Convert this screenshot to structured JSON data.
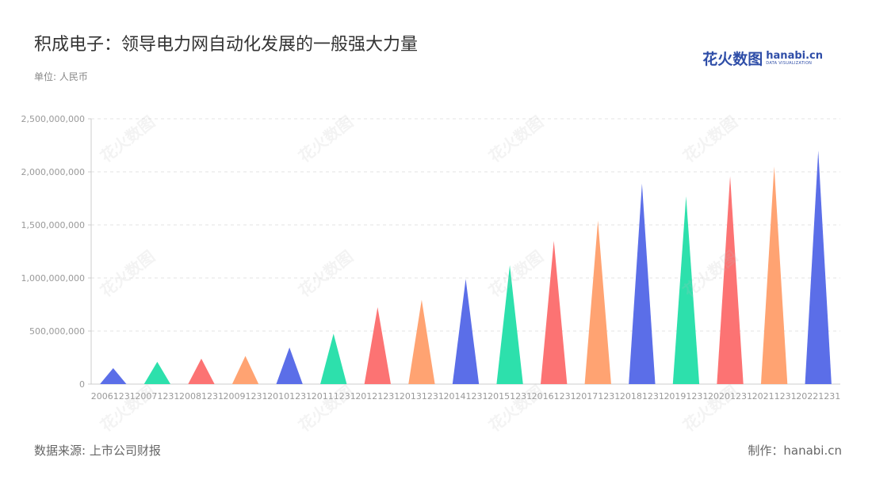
{
  "header": {
    "title": "积成电子：领导电力网自动化发展的一般强大力量",
    "unit": "单位: 人民币"
  },
  "logo": {
    "cn": "花火数图",
    "domain": "hanabi.cn",
    "sub": "DATA VISUALIZATION"
  },
  "footer": {
    "source": "数据来源: 上市公司财报",
    "credit": "制作：hanabi.cn"
  },
  "watermark": {
    "text": "花火数图"
  },
  "chart_data": {
    "type": "bar",
    "mark_shape": "triangle",
    "categories": [
      "20061231",
      "20071231",
      "20081231",
      "20091231",
      "20101231",
      "20111231",
      "20121231",
      "20131231",
      "20141231",
      "20151231",
      "20161231",
      "20171231",
      "20181231",
      "20191231",
      "20201231",
      "20211231",
      "20221231"
    ],
    "values": [
      150000000,
      210000000,
      240000000,
      265000000,
      345000000,
      475000000,
      725000000,
      795000000,
      990000000,
      1120000000,
      1350000000,
      1540000000,
      1890000000,
      1770000000,
      1960000000,
      2050000000,
      2200000000
    ],
    "colors": [
      "#5b6ee8",
      "#2de0ac",
      "#fc7373",
      "#ffa372",
      "#5b6ee8",
      "#2de0ac",
      "#fc7373",
      "#ffa372",
      "#5b6ee8",
      "#2de0ac",
      "#fc7373",
      "#ffa372",
      "#5b6ee8",
      "#2de0ac",
      "#fc7373",
      "#ffa372",
      "#5b6ee8"
    ],
    "ylim": [
      0,
      2500000000
    ],
    "yticks": [
      0,
      500000000,
      1000000000,
      1500000000,
      2000000000,
      2500000000
    ],
    "ytick_labels": [
      "0",
      "500,000,000",
      "1,000,000,000",
      "1,500,000,000",
      "2,000,000,000",
      "2,500,000,000"
    ],
    "grid": true,
    "legend": "none"
  }
}
